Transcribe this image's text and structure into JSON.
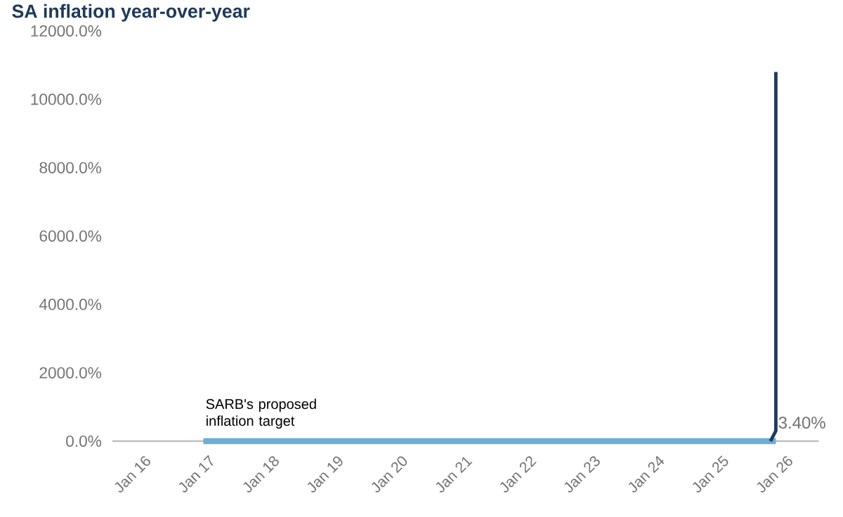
{
  "chart_data": {
    "type": "line",
    "title": "SA inflation year-over-year",
    "xlim": [
      "2015-07",
      "2026-07"
    ],
    "xticks": [
      {
        "value": "2016-01",
        "label": "Jan 16"
      },
      {
        "value": "2017-01",
        "label": "Jan 17"
      },
      {
        "value": "2018-01",
        "label": "Jan 18"
      },
      {
        "value": "2019-01",
        "label": "Jan 19"
      },
      {
        "value": "2020-01",
        "label": "Jan 20"
      },
      {
        "value": "2021-01",
        "label": "Jan 21"
      },
      {
        "value": "2022-01",
        "label": "Jan 22"
      },
      {
        "value": "2023-01",
        "label": "Jan 23"
      },
      {
        "value": "2024-01",
        "label": "Jan 24"
      },
      {
        "value": "2025-01",
        "label": "Jan 25"
      },
      {
        "value": "2026-01",
        "label": "Jan 26"
      }
    ],
    "ylim": [
      0,
      12000
    ],
    "yticks": [
      {
        "value": 0,
        "label": "0.0%"
      },
      {
        "value": 2000,
        "label": "2000.0%"
      },
      {
        "value": 4000,
        "label": "4000.0%"
      },
      {
        "value": 6000,
        "label": "6000.0%"
      },
      {
        "value": 8000,
        "label": "8000.0%"
      },
      {
        "value": 10000,
        "label": "10000.0%"
      },
      {
        "value": 12000,
        "label": "12000.0%"
      }
    ],
    "series": [
      {
        "color": "#6baed6",
        "x": [
          "2016-12",
          "2025-11"
        ],
        "values": [
          0,
          0
        ]
      },
      {
        "color": "#1f3a5a",
        "x": [
          "2025-10",
          "2025-11",
          "2025-11"
        ],
        "values": [
          0,
          300,
          10800
        ]
      }
    ],
    "annotations": [
      "SARB's proposed inflation target",
      {
        "text": "3.40%",
        "x": "2025-11",
        "y": 300
      }
    ],
    "grid": false,
    "marker": "none",
    "line_style": "solid"
  }
}
